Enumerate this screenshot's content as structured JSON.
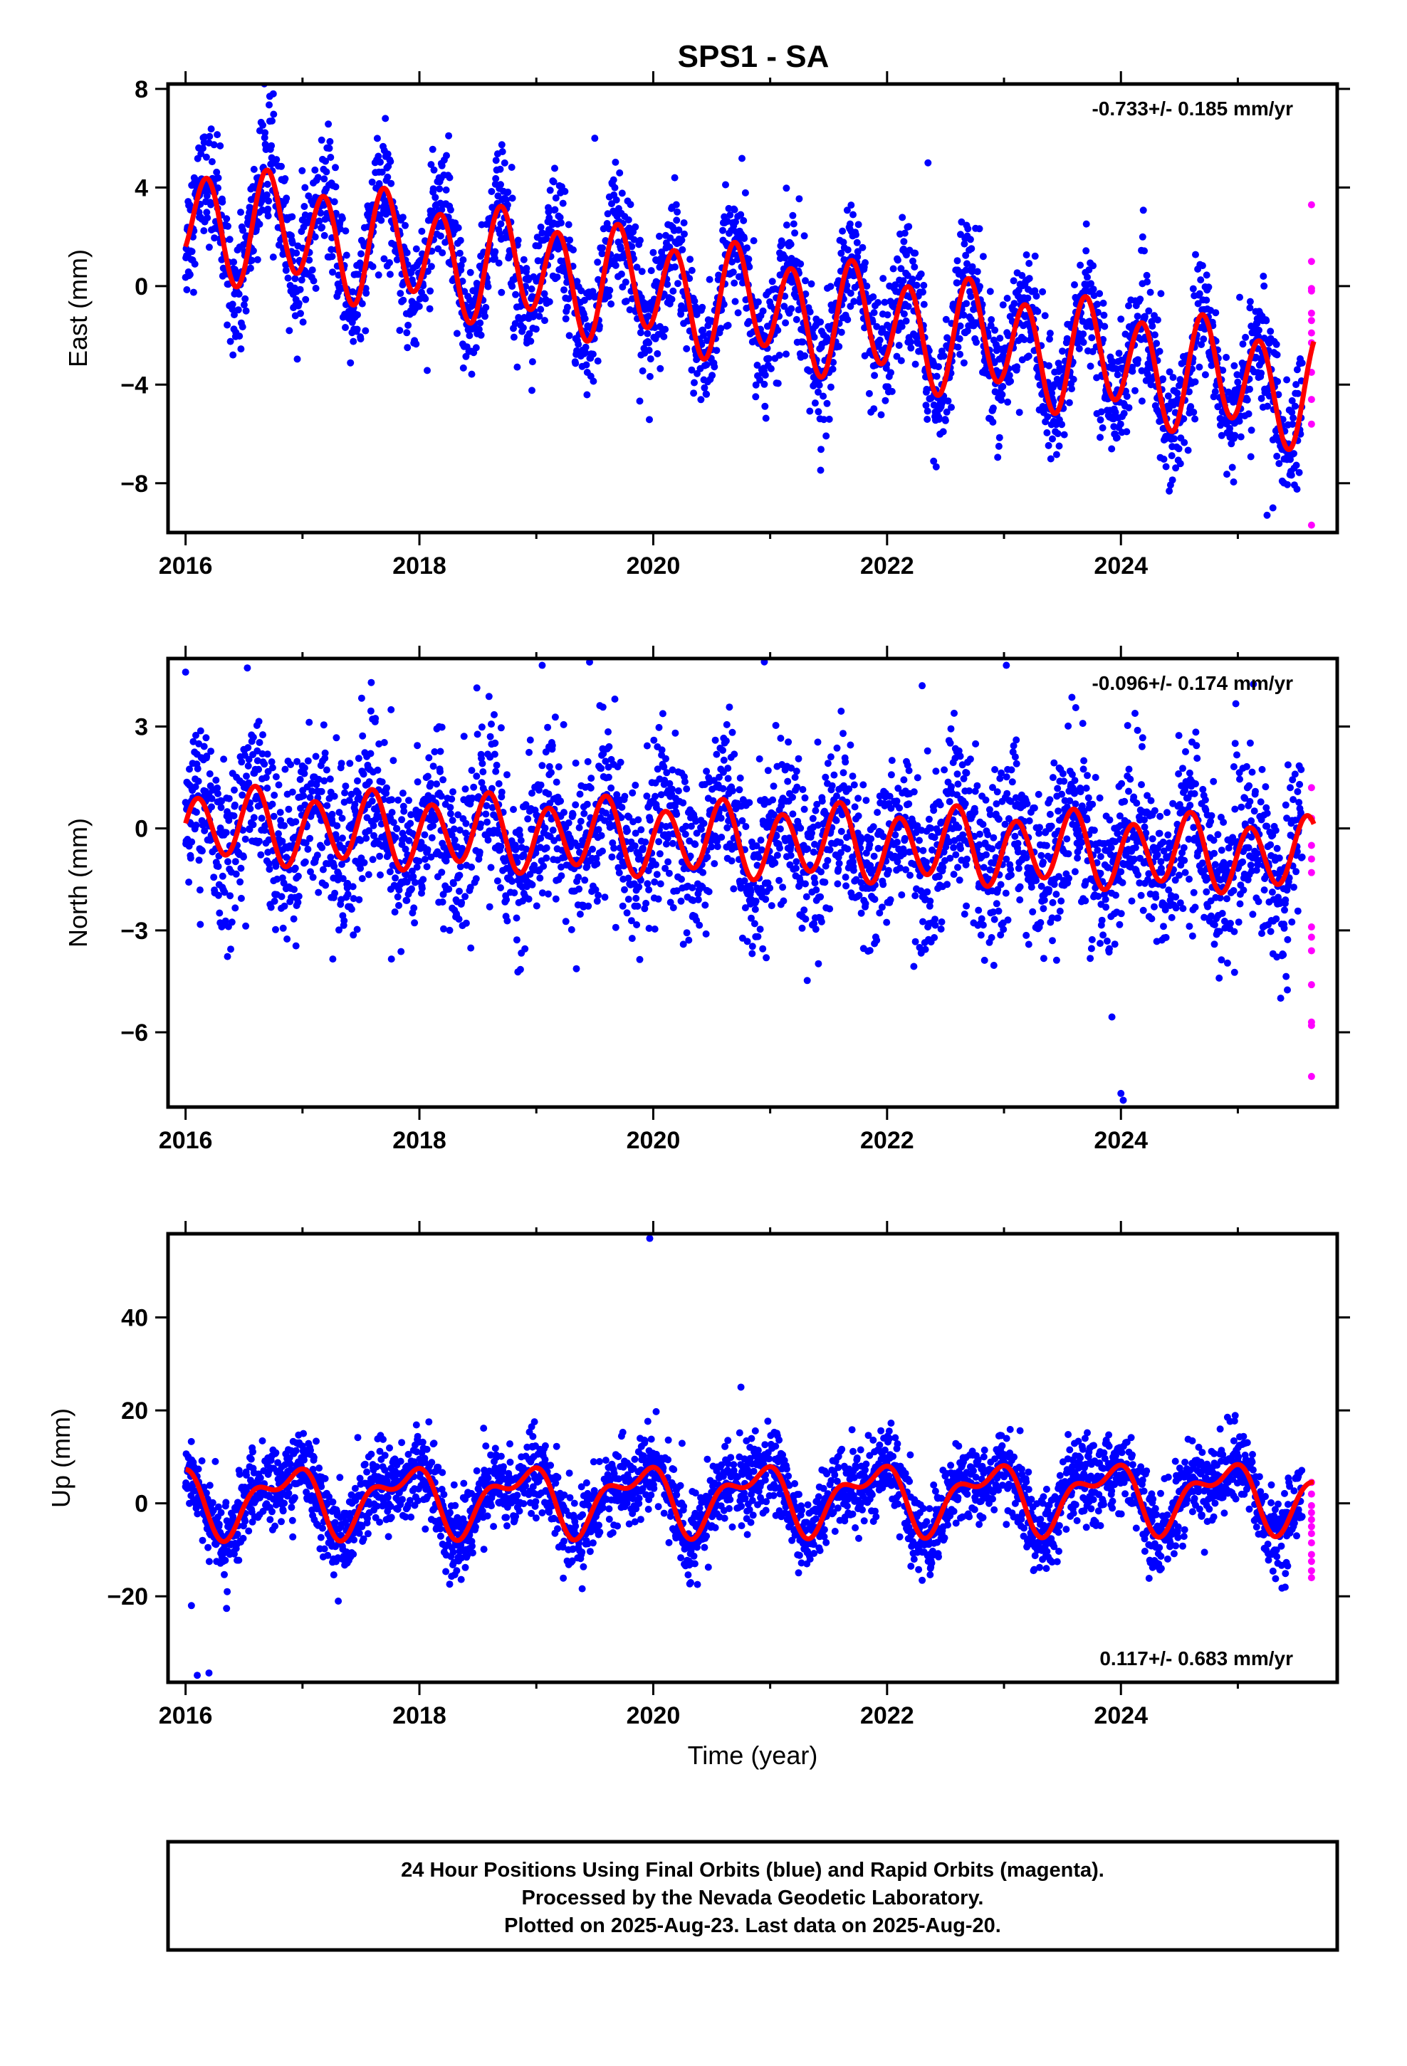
{
  "title": "SPS1 - SA",
  "colors": {
    "final_points": "#0000ff",
    "rapid_points": "#ff00ff",
    "model_fit": "#ff0000",
    "frame": "#000000"
  },
  "chart_data": [
    {
      "type": "scatter",
      "component": "east",
      "ylabel": "East (mm)",
      "xlabel": "",
      "xlim": [
        2015.85,
        2025.85
      ],
      "ylim": [
        -10.0,
        8.2
      ],
      "yticks": [
        -8,
        -4,
        0,
        4,
        8
      ],
      "ytick_labels": [
        "−8",
        "−4",
        "0",
        "4",
        "8"
      ],
      "xticks": [
        2016,
        2018,
        2020,
        2022,
        2024
      ],
      "xtick_labels": [
        "2016",
        "2018",
        "2020",
        "2022",
        "2024"
      ],
      "rate_label": "-0.733+/- 0.185 mm/yr",
      "rate_label_position": "top-right",
      "model": {
        "start": 2016.0,
        "end": 2025.65,
        "intercept": 2.8,
        "trend_mm_per_yr": -0.733,
        "annual_sin": -0.5,
        "annual_cos": 0.3,
        "semiannual_sin": 1.4,
        "semiannual_cos": -1.5
      },
      "final_scatter_sd": 1.2,
      "rapid_points": {
        "x": [
          2025.63,
          2025.63,
          2025.63,
          2025.63,
          2025.63,
          2025.63,
          2025.63,
          2025.63,
          2025.63,
          2025.63,
          2025.63,
          2025.63
        ],
        "y": [
          3.3,
          1.0,
          -0.1,
          -0.2,
          -1.1,
          -1.4,
          -1.9,
          -2.3,
          -3.5,
          -4.6,
          -5.6,
          -9.7
        ]
      },
      "outliers": {
        "x": [
          2016.75,
          2016.72,
          2019.5,
          2018.25,
          2022.35,
          2025.25,
          2025.3
        ],
        "y": [
          7.8,
          7.7,
          6.0,
          6.1,
          5.0,
          -9.3,
          -9.0
        ]
      }
    },
    {
      "type": "scatter",
      "component": "north",
      "ylabel": "North (mm)",
      "xlabel": "",
      "xlim": [
        2015.85,
        2025.85
      ],
      "ylim": [
        -8.2,
        5.0
      ],
      "yticks": [
        -6,
        -3,
        0,
        3
      ],
      "ytick_labels": [
        "−6",
        "−3",
        "0",
        "3"
      ],
      "xticks": [
        2016,
        2018,
        2020,
        2022,
        2024
      ],
      "xtick_labels": [
        "2016",
        "2018",
        "2020",
        "2022",
        "2024"
      ],
      "rate_label": "-0.096+/- 0.174 mm/yr",
      "rate_label_position": "top-right",
      "model": {
        "start": 2016.0,
        "end": 2025.65,
        "intercept": 0.1,
        "trend_mm_per_yr": -0.096,
        "annual_sin": 0.0,
        "annual_cos": -0.25,
        "semiannual_sin": 0.95,
        "semiannual_cos": 0.3
      },
      "final_scatter_sd": 1.2,
      "rapid_points": {
        "x": [
          2025.63,
          2025.63,
          2025.63,
          2025.63,
          2025.63,
          2025.63,
          2025.63,
          2025.63,
          2025.63,
          2025.63,
          2025.63,
          2025.63
        ],
        "y": [
          1.2,
          0.3,
          -0.5,
          -0.9,
          -1.3,
          -2.9,
          -3.2,
          -3.6,
          -4.6,
          -5.7,
          -5.8,
          -7.3
        ]
      },
      "outliers": {
        "x": [
          2016.0,
          2020.95,
          2023.02,
          2024.02,
          2024.0,
          2019.05,
          2022.3
        ],
        "y": [
          4.6,
          4.9,
          4.8,
          -8.0,
          -7.8,
          4.8,
          4.2
        ]
      }
    },
    {
      "type": "scatter",
      "component": "up",
      "ylabel": "Up (mm)",
      "xlabel": "Time (year)",
      "xlim": [
        2015.85,
        2025.85
      ],
      "ylim": [
        -38.5,
        58.0
      ],
      "yticks": [
        -20,
        0,
        20,
        40
      ],
      "ytick_labels": [
        "−20",
        "0",
        "20",
        "40"
      ],
      "xticks": [
        2016,
        2018,
        2020,
        2022,
        2024
      ],
      "xtick_labels": [
        "2016",
        "2018",
        "2020",
        "2022",
        "2024"
      ],
      "rate_label": "0.117+/- 0.683 mm/yr",
      "rate_label_position": "bottom-right",
      "model": {
        "start": 2016.0,
        "end": 2025.65,
        "intercept": 0.8,
        "trend_mm_per_yr": 0.117,
        "annual_sin": -4.5,
        "annual_cos": 4.0,
        "semiannual_sin": 2.2,
        "semiannual_cos": 2.5
      },
      "final_scatter_sd": 4.3,
      "rapid_points": {
        "x": [
          2025.63,
          2025.63,
          2025.63,
          2025.63,
          2025.63,
          2025.63,
          2025.63,
          2025.63,
          2025.63,
          2025.63,
          2025.63,
          2025.63
        ],
        "y": [
          4.5,
          2.0,
          -0.5,
          -2.0,
          -3.5,
          -5.0,
          -6.5,
          -8.5,
          -11.0,
          -12.5,
          -14.5,
          -16.0
        ]
      },
      "outliers": {
        "x": [
          2019.97,
          2016.1,
          2016.05,
          2016.2,
          2020.75
        ],
        "y": [
          57.0,
          -37.0,
          -22.0,
          -36.5,
          25.0
        ]
      }
    }
  ],
  "footer": {
    "line1": "24 Hour Positions Using Final Orbits (blue) and Rapid Orbits (magenta).",
    "line2": "Processed by the Nevada Geodetic Laboratory.",
    "line3": "Plotted on 2025-Aug-23. Last data on 2025-Aug-20."
  }
}
